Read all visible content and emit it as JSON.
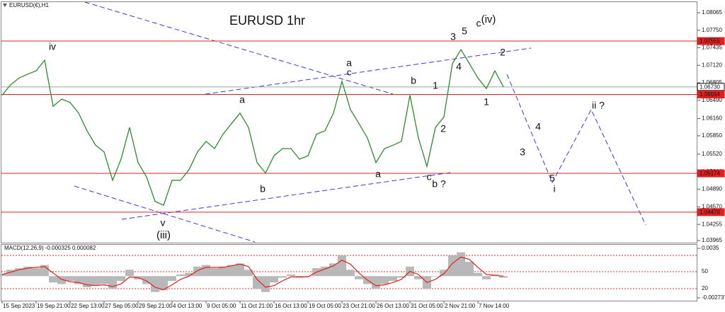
{
  "chart_data": [
    {
      "type": "line",
      "title": "EURUSD 1hr",
      "subtitle": "EURUSD(€),H1",
      "categories": [
        "15 Sep 2023",
        null,
        null,
        null,
        "19 Sep 21:00",
        null,
        null,
        null,
        "22 Sep 13:00",
        null,
        null,
        null,
        "27 Sep 05:00",
        null,
        null,
        null,
        "29 Sep 21:00",
        null,
        null,
        null,
        "4 Oct 13:00",
        null,
        null,
        null,
        "9 Oct 05:00",
        null,
        null,
        null,
        "11 Oct 21:00",
        null,
        null,
        null,
        "16 Oct 13:00",
        null,
        null,
        null,
        "19 Oct 05:00",
        null,
        null,
        null,
        "23 Oct 21:00",
        null,
        null,
        null,
        "26 Oct 13:00",
        null,
        null,
        null,
        "31 Oct 05:00",
        null,
        null,
        null,
        "2 Nov 21:00",
        null,
        null,
        null,
        "7 Nov 14:00",
        null,
        null,
        null
      ],
      "values": [
        1.0658,
        1.0677,
        1.0689,
        1.0696,
        1.0702,
        1.0721,
        1.0638,
        1.0651,
        1.0645,
        1.0626,
        1.0594,
        1.0568,
        1.0556,
        1.0505,
        1.0543,
        1.06,
        1.0537,
        1.0511,
        1.0467,
        1.046,
        1.0505,
        1.0505,
        1.0524,
        1.0556,
        1.0575,
        1.0562,
        1.0588,
        1.0607,
        1.0626,
        1.06,
        1.0537,
        1.0518,
        1.0549,
        1.0562,
        1.0562,
        1.0543,
        1.0549,
        1.0588,
        1.0594,
        1.0626,
        1.0683,
        1.0632,
        1.0607,
        1.0581,
        1.0537,
        1.0562,
        1.0568,
        1.0575,
        1.0658,
        1.0581,
        1.053,
        1.06,
        1.0619,
        1.0715,
        1.074,
        1.0715,
        1.0689,
        1.067,
        1.0702,
        1.0673
      ],
      "color": "#2e8b2e",
      "ylim": [
        1.03965,
        1.08065
      ],
      "yticks": [
        1.08065,
        {
          "value": 1.0775,
          "label": "1.07750"
        },
        1.07435,
        {
          "value": 1.0712,
          "label": "1.07120"
        },
        1.06805,
        {
          "value": 1.0649,
          "label": "1.06490"
        },
        {
          "value": 1.0616,
          "label": "1.06160"
        },
        {
          "value": 1.0585,
          "label": "1.05850"
        },
        {
          "value": 1.0552,
          "label": "1.05520"
        },
        {
          "value": 1.052,
          "label": "1.05200"
        },
        {
          "value": 1.0489,
          "label": "1.04890"
        },
        {
          "value": 1.0457,
          "label": "1.04570"
        },
        1.04255,
        1.03965
      ],
      "levels": [
        {
          "value": 1.07555,
          "label": "1.07555",
          "color": "#e02020"
        },
        {
          "value": 1.0673,
          "label": "1.06730",
          "color": "#a0a0a0"
        },
        {
          "value": 1.06594,
          "label": "1.06594",
          "color": "#e02020"
        },
        {
          "value": 1.05174,
          "label": "1.05174",
          "color": "#e02020"
        },
        {
          "value": 1.04476,
          "label": "1.04476",
          "color": "#e02020"
        }
      ],
      "annotations": [
        {
          "text": "iv",
          "color": "#e020e0"
        },
        {
          "text": "v",
          "color": "#e020e0"
        },
        {
          "text": "(iii)",
          "color": "#2828a8"
        },
        {
          "text": "a",
          "color": "#111111"
        },
        {
          "text": "b",
          "color": "#111111"
        },
        {
          "text": "a",
          "color": "#e020e0"
        },
        {
          "text": "c",
          "color": "#111111"
        },
        {
          "text": "b",
          "color": "#111111"
        },
        {
          "text": "a",
          "color": "#111111"
        },
        {
          "text": "c",
          "color": "#111111"
        },
        {
          "text": "b ?",
          "color": "#e020e0"
        },
        {
          "text": "1",
          "color": "#111111"
        },
        {
          "text": "2",
          "color": "#111111"
        },
        {
          "text": "3",
          "color": "#111111"
        },
        {
          "text": "5",
          "color": "#111111"
        },
        {
          "text": "c",
          "color": "#e020e0"
        },
        {
          "text": "(iv)",
          "color": "#2828a8"
        },
        {
          "text": "4",
          "color": "#111111"
        },
        {
          "text": "1",
          "color": "#111111"
        },
        {
          "text": "2",
          "color": "#111111"
        },
        {
          "text": "4",
          "color": "#111111"
        },
        {
          "text": "3",
          "color": "#111111"
        },
        {
          "text": "5",
          "color": "#111111"
        },
        {
          "text": "i",
          "color": "#e020e0"
        },
        {
          "text": "ii ?",
          "color": "#e020e0"
        }
      ]
    },
    {
      "type": "macd",
      "title": "MACD(12,26,9) -0.000325 0.000082",
      "series": [
        {
          "color": "#b8b8b8",
          "values": [
            0.0003,
            0.0008,
            0.001,
            0.0012,
            0.001,
            0.0014,
            -0.0008,
            -0.001,
            -0.0006,
            -0.001,
            -0.0014,
            -0.0012,
            -0.001,
            -0.0016,
            -0.0006,
            0.0008,
            -0.0004,
            -0.001,
            -0.002,
            -0.0018,
            -0.0006,
            0.0002,
            0.0004,
            0.0012,
            0.0014,
            0.001,
            0.0012,
            0.0014,
            0.0016,
            0.0008,
            -0.0016,
            -0.002,
            -0.0008,
            -0.0002,
            0.0002,
            -0.0002,
            0,
            0.001,
            0.0012,
            0.0016,
            0.0026,
            0.0008,
            -0.0004,
            -0.001,
            -0.0016,
            -0.001,
            -0.0006,
            -0.0002,
            0.0012,
            -0.0004,
            -0.0016,
            0,
            0.0008,
            0.0026,
            0.003,
            0.0018,
            0.0004,
            -0.0004,
            0.0002,
            -0.0002
          ]
        },
        {
          "color": "#e02020",
          "values": [
            0.0002,
            0.0005,
            0.0008,
            0.001,
            0.0011,
            0.0012,
            0.0004,
            -0.0004,
            -0.0007,
            -0.0008,
            -0.0011,
            -0.0012,
            -0.0011,
            -0.0013,
            -0.001,
            -0.0001,
            -0.0002,
            -0.0006,
            -0.0014,
            -0.0017,
            -0.0011,
            -0.0004,
            0,
            0.0007,
            0.0011,
            0.0011,
            0.0011,
            0.0013,
            0.0015,
            0.0012,
            -0.0004,
            -0.0014,
            -0.0012,
            -0.0006,
            -0.0001,
            -0.0001,
            -0.0001,
            0.0005,
            0.0009,
            0.0013,
            0.002,
            0.0015,
            0.0004,
            -0.0005,
            -0.0012,
            -0.0011,
            -0.0008,
            -0.0004,
            0.0006,
            0.0002,
            -0.0008,
            -0.0004,
            0.0003,
            0.0016,
            0.0024,
            0.0021,
            0.0011,
            0.0002,
            0.0001,
            0
          ]
        }
      ],
      "ylim": [
        -0.002737,
        0.0035
      ],
      "yticks": [
        0.0035,
        -0.002737
      ],
      "level_labels": [
        "50",
        "20"
      ]
    }
  ]
}
